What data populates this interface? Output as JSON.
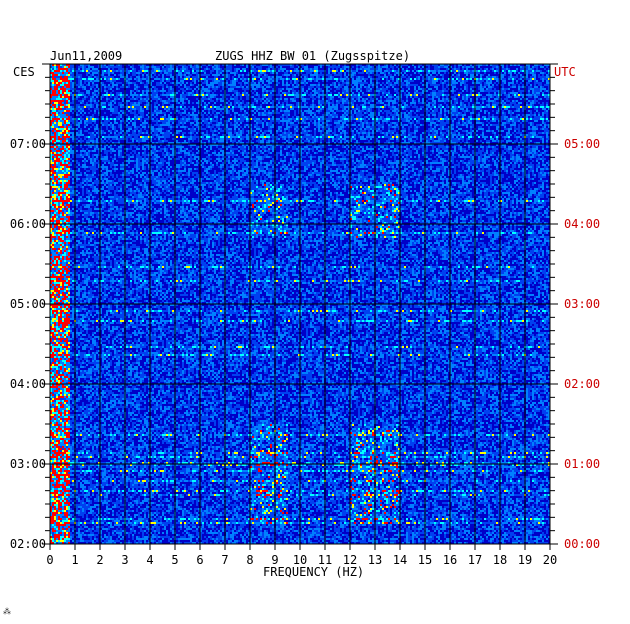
{
  "header": {
    "date": "Jun11,2009",
    "station": "ZUGS HHZ BW 01 (Zugsspitze)",
    "left_tz": "CES",
    "right_tz": "UTC"
  },
  "chart_data": {
    "type": "heatmap",
    "title": "ZUGS HHZ BW 01 (Zugsspitze)",
    "xlabel": "FREQUENCY (HZ)",
    "x_ticks": [
      "0",
      "1",
      "2",
      "3",
      "4",
      "5",
      "6",
      "7",
      "8",
      "9",
      "10",
      "11",
      "12",
      "13",
      "14",
      "15",
      "16",
      "17",
      "18",
      "19",
      "20"
    ],
    "xlim": [
      0,
      20
    ],
    "y_ticks_left": [
      "07:00",
      "06:00",
      "05:00",
      "04:00",
      "03:00",
      "02:00"
    ],
    "y_ticks_right": [
      "05:00",
      "04:00",
      "03:00",
      "02:00",
      "01:00",
      "00:00"
    ],
    "ylim_ces": [
      "02:00",
      "08:00"
    ],
    "colors": {
      "low": "#0000c8",
      "mid": "#0080ff",
      "high": "#00ffff",
      "peak": "#ffff00",
      "max": "#ff0000",
      "grid": "#000000"
    },
    "bright_bands_hz": [
      [
        8.0,
        9.5
      ],
      [
        12.0,
        14.0
      ]
    ],
    "bright_bands_ces": [
      [
        "02:15",
        "03:30"
      ],
      [
        "05:50",
        "06:30"
      ]
    ]
  },
  "footer": {
    "mark": "⁂"
  }
}
